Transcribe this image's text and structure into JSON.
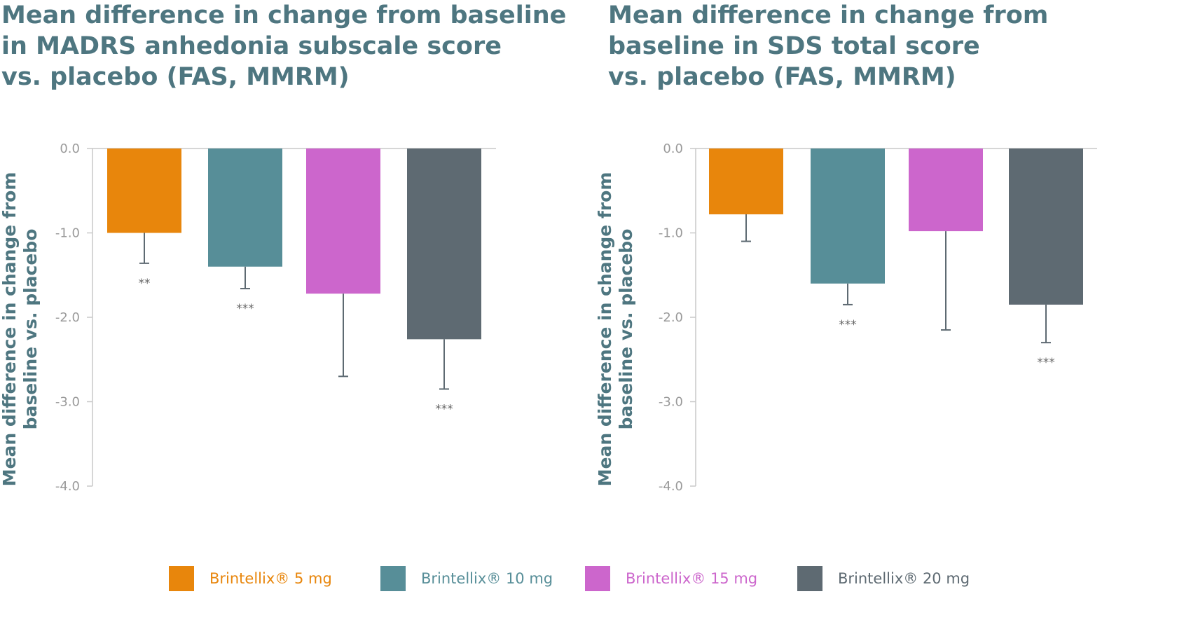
{
  "colors": {
    "title": "#4e7680",
    "axis": "#c8c8c8",
    "tick_text": "#9a9a9a",
    "error_bar": "#5e6a72"
  },
  "legend": [
    {
      "label": "Brintellix® 5 mg",
      "color": "#e8860c"
    },
    {
      "label": "Brintellix® 10 mg",
      "color": "#578e98"
    },
    {
      "label": "Brintellix® 15 mg",
      "color": "#cc66cc"
    },
    {
      "label": "Brintellix® 20 mg",
      "color": "#5e6a72"
    }
  ],
  "chart_data": [
    {
      "type": "bar",
      "title_lines": [
        "Mean difference in change from baseline",
        "in MADRS anhedonia subscale score",
        "vs. placebo (FAS, MMRM)"
      ],
      "ylabel_lines": [
        "Mean difference in change from",
        "baseline vs. placebo"
      ],
      "ylim": [
        -4.0,
        0.0
      ],
      "yticks": [
        "0.0",
        "-1.0",
        "-2.0",
        "-3.0",
        "-4.0"
      ],
      "grid": false,
      "categories": [
        "Brintellix® 5 mg",
        "Brintellix® 10 mg",
        "Brintellix® 15 mg",
        "Brintellix® 20 mg"
      ],
      "values": [
        -1.0,
        -1.4,
        -1.72,
        -2.26
      ],
      "error_low": [
        -1.36,
        -1.66,
        -2.7,
        -2.85
      ],
      "significance": [
        "**",
        "***",
        "",
        "***"
      ]
    },
    {
      "type": "bar",
      "title_lines": [
        "Mean difference in change from",
        "baseline in SDS total score",
        "vs. placebo (FAS, MMRM)"
      ],
      "ylabel_lines": [
        "Mean difference in change from",
        "baseline vs. placebo"
      ],
      "ylim": [
        -4.0,
        0.0
      ],
      "yticks": [
        "0.0",
        "-1.0",
        "-2.0",
        "-3.0",
        "-4.0"
      ],
      "grid": false,
      "categories": [
        "Brintellix® 5 mg",
        "Brintellix® 10 mg",
        "Brintellix® 15 mg",
        "Brintellix® 20 mg"
      ],
      "values": [
        -0.78,
        -1.6,
        -0.98,
        -1.85
      ],
      "error_low": [
        -1.1,
        -1.85,
        -2.15,
        -2.3
      ],
      "significance": [
        "",
        "***",
        "",
        "***"
      ]
    }
  ]
}
